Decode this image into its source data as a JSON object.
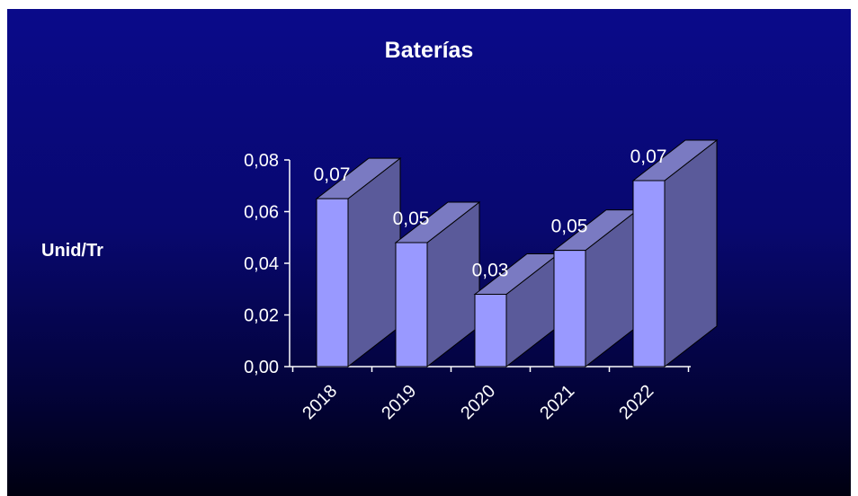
{
  "chart_data": {
    "type": "bar",
    "title": "Baterías",
    "ylabel": "Unid/Tr",
    "xlabel": "",
    "categories": [
      "2018",
      "2019",
      "2020",
      "2021",
      "2022"
    ],
    "values": [
      0.065,
      0.048,
      0.028,
      0.045,
      0.072
    ],
    "data_labels": [
      "0,07",
      "0,05",
      "0,03",
      "0,05",
      "0,07"
    ],
    "ylim": [
      0,
      0.08
    ],
    "yticks": [
      "0,00",
      "0,02",
      "0,04",
      "0,06",
      "0,08"
    ],
    "style": "3d-column",
    "colors": {
      "front": "#9999ff",
      "side": "#5a5a9a",
      "top": "#7a7ac2",
      "background": "#0a0a8a"
    }
  }
}
